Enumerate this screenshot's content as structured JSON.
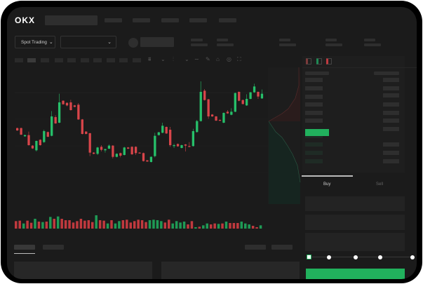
{
  "header": {
    "logo": "OKX"
  },
  "toolbar": {
    "market_dropdown": "Spot Trading",
    "pair_dropdown": ""
  },
  "colors": {
    "up": "#26c06a",
    "down": "#d8454a",
    "accent": "#21b15d"
  },
  "trade_panel": {
    "tabs": [
      "Buy",
      "Sell"
    ],
    "active_tab": "Buy",
    "slider_level": 0
  },
  "chart_data": {
    "type": "candlestick",
    "title": "",
    "xlabel": "",
    "ylabel": "",
    "ylim": [
      0,
      400
    ],
    "candles": [
      [
        185,
        175,
        187,
        173
      ],
      [
        185,
        157,
        187,
        155
      ],
      [
        150,
        155,
        157,
        148
      ],
      [
        155,
        112,
        170,
        110
      ],
      [
        110,
        98,
        112,
        96
      ],
      [
        90,
        130,
        132,
        85
      ],
      [
        135,
        112,
        137,
        110
      ],
      [
        125,
        172,
        178,
        122
      ],
      [
        168,
        148,
        170,
        146
      ],
      [
        152,
        235,
        258,
        150
      ],
      [
        232,
        205,
        240,
        203
      ],
      [
        208,
        295,
        332,
        206
      ],
      [
        302,
        287,
        304,
        285
      ],
      [
        293,
        282,
        295,
        278
      ],
      [
        295,
        262,
        306,
        260
      ],
      [
        282,
        276,
        284,
        274
      ],
      [
        285,
        222,
        292,
        220
      ],
      [
        222,
        160,
        224,
        158
      ],
      [
        170,
        160,
        172,
        158
      ],
      [
        163,
        80,
        165,
        65
      ],
      [
        80,
        75,
        82,
        73
      ],
      [
        75,
        102,
        105,
        70
      ],
      [
        105,
        92,
        112,
        85
      ],
      [
        90,
        95,
        97,
        80
      ],
      [
        97,
        110,
        115,
        95
      ],
      [
        110,
        62,
        112,
        55
      ],
      [
        62,
        75,
        77,
        60
      ],
      [
        78,
        67,
        80,
        60
      ],
      [
        70,
        102,
        105,
        68
      ],
      [
        102,
        97,
        104,
        95
      ],
      [
        105,
        73,
        107,
        70
      ],
      [
        105,
        78,
        107,
        70
      ],
      [
        80,
        78,
        82,
        76
      ],
      [
        78,
        44,
        80,
        42
      ],
      [
        47,
        42,
        49,
        40
      ],
      [
        40,
        62,
        64,
        38
      ],
      [
        65,
        152,
        165,
        60
      ],
      [
        155,
        167,
        169,
        153
      ],
      [
        165,
        195,
        208,
        163
      ],
      [
        190,
        162,
        192,
        160
      ],
      [
        178,
        112,
        190,
        105
      ],
      [
        108,
        112,
        118,
        100
      ],
      [
        117,
        107,
        119,
        105
      ],
      [
        100,
        112,
        114,
        98
      ],
      [
        115,
        110,
        117,
        85
      ],
      [
        108,
        105,
        125,
        103
      ],
      [
        108,
        172,
        182,
        106
      ],
      [
        168,
        215,
        220,
        166
      ],
      [
        215,
        340,
        385,
        213
      ],
      [
        345,
        305,
        352,
        303
      ],
      [
        308,
        235,
        310,
        225
      ],
      [
        243,
        235,
        245,
        233
      ],
      [
        235,
        217,
        237,
        215
      ],
      [
        220,
        217,
        222,
        215
      ],
      [
        208,
        250,
        252,
        206
      ],
      [
        255,
        248,
        262,
        246
      ],
      [
        242,
        255,
        270,
        240
      ],
      [
        255,
        335,
        337,
        253
      ],
      [
        340,
        302,
        342,
        300
      ],
      [
        305,
        288,
        307,
        286
      ],
      [
        282,
        310,
        330,
        280
      ],
      [
        310,
        338,
        340,
        308
      ],
      [
        338,
        363,
        375,
        336
      ],
      [
        340,
        320,
        342,
        310
      ],
      [
        312,
        332,
        350,
        310
      ]
    ],
    "volumes": [
      32,
      34,
      22,
      34,
      25,
      42,
      30,
      28,
      30,
      50,
      42,
      52,
      42,
      36,
      36,
      26,
      32,
      42,
      34,
      36,
      28,
      57,
      36,
      34,
      22,
      36,
      22,
      32,
      36,
      38,
      26,
      32,
      38,
      36,
      28,
      36,
      38,
      36,
      32,
      26,
      38,
      22,
      32,
      26,
      30,
      18,
      32,
      6,
      8,
      14,
      22,
      18,
      22,
      20,
      22,
      30,
      24,
      24,
      24,
      30,
      22,
      18,
      12,
      6,
      14
    ],
    "volume_dirs": "RRGRRGRGRGRGRRRRRRRRRGRRGRGGRRRRRRRGGGGRRGGGGRRGRGGRRGRGRRRGGGRRG"
  }
}
